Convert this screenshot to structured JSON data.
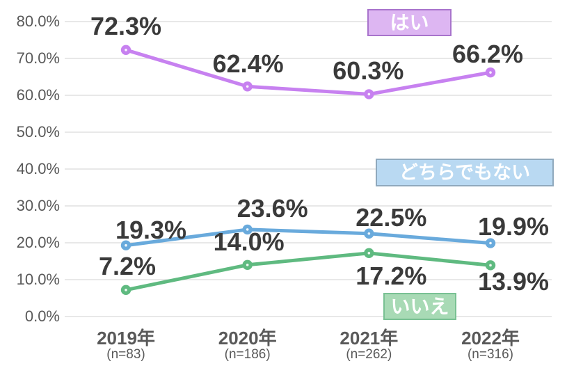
{
  "chart_data": {
    "type": "line",
    "title": "",
    "xlabel": "",
    "ylabel": "",
    "ylim": [
      0,
      80
    ],
    "grid": true,
    "legend_position": "inline-annotation-boxes",
    "y_ticks": [
      "0.0%",
      "10.0%",
      "20.0%",
      "30.0%",
      "40.0%",
      "50.0%",
      "60.0%",
      "70.0%",
      "80.0%"
    ],
    "categories": [
      "2019年",
      "2020年",
      "2021年",
      "2022年"
    ],
    "category_sublabels": [
      "(n=83)",
      "(n=186)",
      "(n=262)",
      "(n=316)"
    ],
    "series": [
      {
        "name": "はい",
        "values": [
          72.3,
          62.4,
          60.3,
          66.2
        ],
        "data_labels": [
          "72.3%",
          "62.4%",
          "60.3%",
          "66.2%"
        ],
        "color": "#c781f0",
        "legend_fill": "#ddb6f2",
        "legend_border": "#a873cc"
      },
      {
        "name": "どちらでもない",
        "values": [
          19.3,
          23.6,
          22.5,
          19.9
        ],
        "data_labels": [
          "19.3%",
          "23.6%",
          "22.5%",
          "19.9%"
        ],
        "color": "#69aadc",
        "legend_fill": "#b9d9f2",
        "legend_border": "#8fa9bd"
      },
      {
        "name": "いいえ",
        "values": [
          7.2,
          14.0,
          17.2,
          13.9
        ],
        "data_labels": [
          "7.2%",
          "14.0%",
          "17.2%",
          "13.9%"
        ],
        "color": "#5fba80",
        "legend_fill": "#a8dab5",
        "legend_border": "#79c193"
      }
    ],
    "colors": {
      "gridline": "#d9d9d9",
      "axis_text": "#595959",
      "data_label_text": "#3a3a3a",
      "background": "#ffffff"
    }
  }
}
